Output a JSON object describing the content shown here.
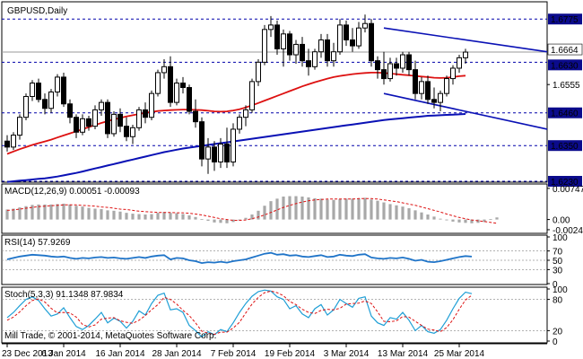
{
  "colors": {
    "background": "#ffffff",
    "frame": "#000000",
    "bull_body": "#ffffff",
    "bear_body": "#000000",
    "ma_red": "#dd1111",
    "ma_blue": "#0a11b5",
    "trendline": "#0a11b5",
    "level_line": "#0000aa",
    "macd_hist": "#a8a8a8",
    "macd_signal": "#dd1111",
    "rsi_line": "#1f74c8",
    "stoch_main": "#1f9fd6",
    "stoch_signal": "#dd1111",
    "tag_blue": "#0b0b8c",
    "tag_text": "#ffffff"
  },
  "chart_data": [
    {
      "type": "candlestick",
      "title": "GBPUSD,Daily",
      "ylim": [
        1.623,
        1.683
      ],
      "y_ticks": [
        "1.6775",
        "1.6664",
        "1.6630",
        "1.6555",
        "1.6460",
        "1.6350",
        "1.6230"
      ],
      "x_tick_labels": [
        {
          "i": 0,
          "label": "23 Dec 2013"
        },
        {
          "i": 9,
          "label": "6 Jan 2014"
        },
        {
          "i": 18,
          "label": "16 Jan 2014"
        },
        {
          "i": 27,
          "label": "28 Jan 2014"
        },
        {
          "i": 36,
          "label": "7 Feb 2014"
        },
        {
          "i": 45,
          "label": "19 Feb 2014"
        },
        {
          "i": 54,
          "label": "3 Mar 2014"
        },
        {
          "i": 63,
          "label": "13 Mar 2014"
        },
        {
          "i": 72,
          "label": "25 Mar 2014"
        }
      ],
      "levels": [
        {
          "value": 1.6775,
          "label": "1.6775",
          "tag": true
        },
        {
          "value": 1.663,
          "label": "1.6630",
          "tag": true
        },
        {
          "value": 1.646,
          "label": "1.6460",
          "tag": true
        },
        {
          "value": 1.635,
          "label": "1.6350",
          "tag": true
        },
        {
          "value": 1.623,
          "label": "1.6230",
          "tag": true
        }
      ],
      "current_price": {
        "value": 1.6664,
        "label": "1.6664"
      },
      "trendlines": [
        {
          "from": [
            60,
            1.6745
          ],
          "to": [
            86,
            1.6665
          ]
        },
        {
          "from": [
            60,
            1.6525
          ],
          "to": [
            86,
            1.6405
          ]
        }
      ],
      "candles": [
        {
          "o": 1.6365,
          "h": 1.6385,
          "l": 1.633,
          "c": 1.6345
        },
        {
          "o": 1.6345,
          "h": 1.6395,
          "l": 1.6335,
          "c": 1.6385
        },
        {
          "o": 1.6385,
          "h": 1.6455,
          "l": 1.637,
          "c": 1.6445
        },
        {
          "o": 1.6445,
          "h": 1.6525,
          "l": 1.6435,
          "c": 1.6515
        },
        {
          "o": 1.6515,
          "h": 1.657,
          "l": 1.65,
          "c": 1.656
        },
        {
          "o": 1.656,
          "h": 1.6575,
          "l": 1.6495,
          "c": 1.6505
        },
        {
          "o": 1.6505,
          "h": 1.6525,
          "l": 1.6455,
          "c": 1.6475
        },
        {
          "o": 1.6475,
          "h": 1.654,
          "l": 1.646,
          "c": 1.653
        },
        {
          "o": 1.653,
          "h": 1.659,
          "l": 1.6515,
          "c": 1.658
        },
        {
          "o": 1.658,
          "h": 1.6595,
          "l": 1.648,
          "c": 1.649
        },
        {
          "o": 1.649,
          "h": 1.6505,
          "l": 1.6425,
          "c": 1.6445
        },
        {
          "o": 1.6445,
          "h": 1.6455,
          "l": 1.6375,
          "c": 1.6395
        },
        {
          "o": 1.6395,
          "h": 1.6455,
          "l": 1.6385,
          "c": 1.644
        },
        {
          "o": 1.644,
          "h": 1.645,
          "l": 1.64,
          "c": 1.6415
        },
        {
          "o": 1.6415,
          "h": 1.6485,
          "l": 1.6405,
          "c": 1.647
        },
        {
          "o": 1.647,
          "h": 1.6505,
          "l": 1.645,
          "c": 1.6495
        },
        {
          "o": 1.6495,
          "h": 1.6505,
          "l": 1.6375,
          "c": 1.639
        },
        {
          "o": 1.639,
          "h": 1.6465,
          "l": 1.638,
          "c": 1.6455
        },
        {
          "o": 1.6455,
          "h": 1.6475,
          "l": 1.6395,
          "c": 1.6415
        },
        {
          "o": 1.6415,
          "h": 1.6445,
          "l": 1.6365,
          "c": 1.638
        },
        {
          "o": 1.638,
          "h": 1.642,
          "l": 1.6355,
          "c": 1.641
        },
        {
          "o": 1.641,
          "h": 1.648,
          "l": 1.64,
          "c": 1.647
        },
        {
          "o": 1.647,
          "h": 1.6495,
          "l": 1.6425,
          "c": 1.6445
        },
        {
          "o": 1.6445,
          "h": 1.6535,
          "l": 1.6435,
          "c": 1.6525
        },
        {
          "o": 1.6525,
          "h": 1.6605,
          "l": 1.6515,
          "c": 1.6595
        },
        {
          "o": 1.6595,
          "h": 1.664,
          "l": 1.6575,
          "c": 1.6615
        },
        {
          "o": 1.6615,
          "h": 1.665,
          "l": 1.648,
          "c": 1.6495
        },
        {
          "o": 1.6495,
          "h": 1.6575,
          "l": 1.6485,
          "c": 1.656
        },
        {
          "o": 1.656,
          "h": 1.658,
          "l": 1.6525,
          "c": 1.6545
        },
        {
          "o": 1.6545,
          "h": 1.6555,
          "l": 1.6455,
          "c": 1.6465
        },
        {
          "o": 1.6465,
          "h": 1.6505,
          "l": 1.641,
          "c": 1.643
        },
        {
          "o": 1.643,
          "h": 1.6445,
          "l": 1.628,
          "c": 1.6305
        },
        {
          "o": 1.6305,
          "h": 1.6375,
          "l": 1.6255,
          "c": 1.6345
        },
        {
          "o": 1.6345,
          "h": 1.6365,
          "l": 1.6265,
          "c": 1.6295
        },
        {
          "o": 1.6295,
          "h": 1.6375,
          "l": 1.6275,
          "c": 1.6355
        },
        {
          "o": 1.6355,
          "h": 1.641,
          "l": 1.6275,
          "c": 1.6295
        },
        {
          "o": 1.6295,
          "h": 1.6425,
          "l": 1.628,
          "c": 1.6405
        },
        {
          "o": 1.6405,
          "h": 1.6455,
          "l": 1.639,
          "c": 1.6445
        },
        {
          "o": 1.6445,
          "h": 1.6485,
          "l": 1.6415,
          "c": 1.647
        },
        {
          "o": 1.647,
          "h": 1.6575,
          "l": 1.646,
          "c": 1.6565
        },
        {
          "o": 1.6565,
          "h": 1.664,
          "l": 1.655,
          "c": 1.663
        },
        {
          "o": 1.663,
          "h": 1.6755,
          "l": 1.662,
          "c": 1.674
        },
        {
          "o": 1.674,
          "h": 1.6785,
          "l": 1.6715,
          "c": 1.6755
        },
        {
          "o": 1.6755,
          "h": 1.677,
          "l": 1.6655,
          "c": 1.6675
        },
        {
          "o": 1.6675,
          "h": 1.674,
          "l": 1.6615,
          "c": 1.6725
        },
        {
          "o": 1.6725,
          "h": 1.6735,
          "l": 1.6635,
          "c": 1.6655
        },
        {
          "o": 1.6655,
          "h": 1.6705,
          "l": 1.6625,
          "c": 1.669
        },
        {
          "o": 1.669,
          "h": 1.6715,
          "l": 1.6615,
          "c": 1.6635
        },
        {
          "o": 1.6635,
          "h": 1.6675,
          "l": 1.6585,
          "c": 1.6615
        },
        {
          "o": 1.6615,
          "h": 1.6675,
          "l": 1.6605,
          "c": 1.6665
        },
        {
          "o": 1.6665,
          "h": 1.6725,
          "l": 1.6645,
          "c": 1.6705
        },
        {
          "o": 1.6705,
          "h": 1.6725,
          "l": 1.6615,
          "c": 1.6635
        },
        {
          "o": 1.6635,
          "h": 1.6695,
          "l": 1.6615,
          "c": 1.6665
        },
        {
          "o": 1.6665,
          "h": 1.6775,
          "l": 1.6655,
          "c": 1.6755
        },
        {
          "o": 1.6755,
          "h": 1.677,
          "l": 1.6685,
          "c": 1.6705
        },
        {
          "o": 1.6705,
          "h": 1.6745,
          "l": 1.6665,
          "c": 1.6685
        },
        {
          "o": 1.6685,
          "h": 1.6765,
          "l": 1.6675,
          "c": 1.6745
        },
        {
          "o": 1.6745,
          "h": 1.679,
          "l": 1.673,
          "c": 1.676
        },
        {
          "o": 1.676,
          "h": 1.6775,
          "l": 1.6615,
          "c": 1.6635
        },
        {
          "o": 1.6635,
          "h": 1.665,
          "l": 1.6575,
          "c": 1.6605
        },
        {
          "o": 1.6605,
          "h": 1.6665,
          "l": 1.6555,
          "c": 1.6575
        },
        {
          "o": 1.6575,
          "h": 1.6645,
          "l": 1.6565,
          "c": 1.6625
        },
        {
          "o": 1.6625,
          "h": 1.6645,
          "l": 1.6585,
          "c": 1.661
        },
        {
          "o": 1.661,
          "h": 1.6665,
          "l": 1.6595,
          "c": 1.6655
        },
        {
          "o": 1.6655,
          "h": 1.6665,
          "l": 1.6585,
          "c": 1.6605
        },
        {
          "o": 1.6605,
          "h": 1.6635,
          "l": 1.6505,
          "c": 1.6525
        },
        {
          "o": 1.6525,
          "h": 1.658,
          "l": 1.6505,
          "c": 1.6565
        },
        {
          "o": 1.6565,
          "h": 1.6585,
          "l": 1.649,
          "c": 1.6505
        },
        {
          "o": 1.6505,
          "h": 1.6545,
          "l": 1.6475,
          "c": 1.6495
        },
        {
          "o": 1.6495,
          "h": 1.6535,
          "l": 1.6465,
          "c": 1.6525
        },
        {
          "o": 1.6525,
          "h": 1.6585,
          "l": 1.6515,
          "c": 1.6575
        },
        {
          "o": 1.6575,
          "h": 1.662,
          "l": 1.6555,
          "c": 1.661
        },
        {
          "o": 1.661,
          "h": 1.6655,
          "l": 1.6595,
          "c": 1.6645
        },
        {
          "o": 1.6645,
          "h": 1.6675,
          "l": 1.6625,
          "c": 1.6664
        }
      ],
      "ma_red": [
        1.6322,
        1.633,
        1.6338,
        1.6345,
        1.6352,
        1.6358,
        1.6364,
        1.637,
        1.6377,
        1.6384,
        1.6391,
        1.6398,
        1.6405,
        1.6412,
        1.6419,
        1.6426,
        1.6432,
        1.6438,
        1.6443,
        1.6448,
        1.6452,
        1.6456,
        1.646,
        1.6463,
        1.6466,
        1.6468,
        1.6469,
        1.647,
        1.6471,
        1.6471,
        1.647,
        1.6469,
        1.6467,
        1.6465,
        1.6464,
        1.6465,
        1.6468,
        1.6472,
        1.6478,
        1.6485,
        1.6493,
        1.6501,
        1.6509,
        1.6517,
        1.6525,
        1.6533,
        1.6541,
        1.6549,
        1.6556,
        1.6563,
        1.6569,
        1.6575,
        1.658,
        1.6584,
        1.6587,
        1.659,
        1.6592,
        1.6594,
        1.6595,
        1.6595,
        1.6594,
        1.6592,
        1.659,
        1.6588,
        1.6586,
        1.6584,
        1.6582,
        1.658,
        1.6578,
        1.6577,
        1.6578,
        1.658,
        1.6583,
        1.6585
      ],
      "ma_blue": [
        1.6228,
        1.623,
        1.6232,
        1.6234,
        1.6236,
        1.6238,
        1.624,
        1.6243,
        1.6246,
        1.625,
        1.6254,
        1.6258,
        1.6263,
        1.6268,
        1.6273,
        1.6278,
        1.6283,
        1.6288,
        1.6293,
        1.6298,
        1.6303,
        1.6308,
        1.6313,
        1.6318,
        1.6323,
        1.6328,
        1.6332,
        1.6336,
        1.634,
        1.6343,
        1.6346,
        1.6349,
        1.6352,
        1.6355,
        1.6358,
        1.6361,
        1.6364,
        1.6367,
        1.637,
        1.6373,
        1.6376,
        1.6379,
        1.6382,
        1.6385,
        1.6388,
        1.6391,
        1.6394,
        1.6397,
        1.64,
        1.6403,
        1.6406,
        1.6409,
        1.6412,
        1.6415,
        1.6418,
        1.6421,
        1.6424,
        1.6427,
        1.643,
        1.6433,
        1.6436,
        1.6438,
        1.644,
        1.6442,
        1.6444,
        1.6446,
        1.6448,
        1.645,
        1.6451,
        1.6452,
        1.6453,
        1.6454,
        1.6455,
        1.6456
      ]
    },
    {
      "type": "bar",
      "title": "MACD(12,26,9) 0.00051 -0.00093",
      "ylim": [
        -0.0031,
        0.0083
      ],
      "y_ticks": [
        "0.00747",
        "0.00",
        "-0.00244"
      ],
      "zero_line": true,
      "histogram": [
        0.0024,
        0.0026,
        0.0029,
        0.0032,
        0.0035,
        0.0036,
        0.0036,
        0.0036,
        0.0037,
        0.0038,
        0.0036,
        0.0033,
        0.0031,
        0.0028,
        0.0026,
        0.0025,
        0.0022,
        0.0021,
        0.0019,
        0.0016,
        0.0014,
        0.0013,
        0.0012,
        0.0013,
        0.0016,
        0.0018,
        0.0016,
        0.0015,
        0.0013,
        0.001,
        0.0006,
        0.0001,
        -0.0003,
        -0.0007,
        -0.0008,
        -0.0009,
        -0.0006,
        -0.0002,
        0.0004,
        0.0012,
        0.0021,
        0.0033,
        0.0044,
        0.005,
        0.0055,
        0.0056,
        0.0056,
        0.0055,
        0.0053,
        0.0051,
        0.005,
        0.0048,
        0.0047,
        0.0049,
        0.005,
        0.005,
        0.0051,
        0.0052,
        0.0048,
        0.0045,
        0.0041,
        0.0037,
        0.0034,
        0.0031,
        0.0027,
        0.0022,
        0.0017,
        0.0012,
        0.0007,
        0.0002,
        -0.0002,
        -0.0005,
        -0.0007,
        -0.0008,
        -0.0009,
        -0.0008,
        -0.0006,
        0.0001,
        0.0005
      ],
      "signal": [
        0.0022,
        0.0023,
        0.0025,
        0.0027,
        0.0029,
        0.0031,
        0.0032,
        0.0033,
        0.0034,
        0.0035,
        0.0035,
        0.0035,
        0.0034,
        0.0033,
        0.0032,
        0.003,
        0.0029,
        0.0027,
        0.0025,
        0.0024,
        0.0022,
        0.002,
        0.0019,
        0.0018,
        0.0017,
        0.0017,
        0.0017,
        0.0016,
        0.0016,
        0.0015,
        0.0013,
        0.0011,
        0.0008,
        0.0005,
        0.0002,
        0.0,
        -0.0002,
        -0.0002,
        -0.0001,
        0.0002,
        0.0006,
        0.0011,
        0.0017,
        0.0023,
        0.0029,
        0.0034,
        0.0038,
        0.0042,
        0.0045,
        0.0047,
        0.0048,
        0.0049,
        0.0049,
        0.0049,
        0.0049,
        0.0049,
        0.005,
        0.005,
        0.005,
        0.0049,
        0.0047,
        0.0045,
        0.0043,
        0.004,
        0.0037,
        0.0034,
        0.003,
        0.0026,
        0.0022,
        0.0018,
        0.0013,
        0.0009,
        0.0005,
        0.0002,
        -0.0001,
        -0.0003,
        -0.0005,
        -0.0007,
        -0.0009
      ]
    },
    {
      "type": "line",
      "title": "RSI(14) 57.9269",
      "ylim": [
        0,
        100
      ],
      "y_ticks": [
        "100",
        "70",
        "50",
        "30",
        "0"
      ],
      "levels": [
        70,
        50,
        30
      ],
      "values": [
        52,
        55,
        58,
        60,
        62,
        61,
        60,
        58,
        57,
        58,
        55,
        53,
        55,
        54,
        56,
        57,
        55,
        56,
        54,
        53,
        55,
        57,
        55,
        58,
        60,
        61,
        52,
        55,
        54,
        50,
        48,
        44,
        46,
        45,
        47,
        45,
        48,
        50,
        52,
        56,
        60,
        64,
        66,
        62,
        63,
        60,
        61,
        58,
        57,
        59,
        61,
        57,
        58,
        62,
        60,
        59,
        62,
        63,
        56,
        54,
        53,
        55,
        54,
        56,
        53,
        49,
        51,
        47,
        46,
        48,
        51,
        54,
        57,
        59,
        57.9
      ]
    },
    {
      "type": "line",
      "title": "Stoch(5,3,3) 91.1348 87.9834",
      "ylim": [
        0,
        100
      ],
      "y_ticks": [
        "100",
        "80",
        "20",
        "0"
      ],
      "levels": [
        80,
        20
      ],
      "main": [
        45,
        55,
        68,
        80,
        85,
        78,
        62,
        48,
        52,
        64,
        45,
        28,
        22,
        30,
        42,
        55,
        35,
        44,
        38,
        25,
        38,
        58,
        50,
        72,
        88,
        92,
        60,
        62,
        55,
        30,
        20,
        8,
        18,
        12,
        22,
        18,
        35,
        55,
        72,
        86,
        95,
        98,
        96,
        85,
        80,
        62,
        68,
        52,
        45,
        62,
        70,
        50,
        60,
        80,
        72,
        65,
        82,
        85,
        48,
        35,
        30,
        45,
        42,
        55,
        40,
        20,
        30,
        18,
        15,
        22,
        40,
        62,
        82,
        94,
        91.1
      ],
      "signal": [
        40,
        46,
        56,
        68,
        78,
        81,
        75,
        63,
        54,
        55,
        54,
        46,
        32,
        27,
        31,
        42,
        44,
        45,
        39,
        36,
        34,
        40,
        49,
        60,
        70,
        84,
        80,
        71,
        59,
        49,
        35,
        19,
        15,
        13,
        17,
        17,
        25,
        36,
        54,
        71,
        84,
        93,
        96,
        93,
        87,
        76,
        70,
        61,
        55,
        53,
        59,
        61,
        60,
        63,
        71,
        72,
        73,
        77,
        72,
        56,
        38,
        37,
        39,
        47,
        46,
        38,
        30,
        23,
        21,
        18,
        26,
        41,
        61,
        79,
        87.98
      ]
    }
  ],
  "footer": {
    "copyright": "Mill Trade, © 2001-2014, MetaQuotes Software Corp."
  }
}
